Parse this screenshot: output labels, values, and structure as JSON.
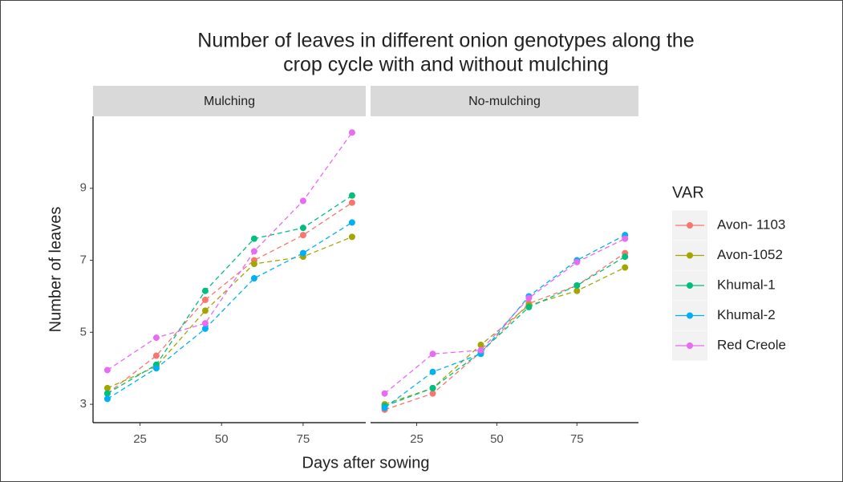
{
  "chart_data": {
    "type": "line",
    "title": [
      "Number of leaves in different onion genotypes along the",
      "crop cycle with and without mulching"
    ],
    "xlabel": "Days after sowing",
    "ylabel": "Number of leaves",
    "legend_title": "VAR",
    "panels": [
      "Mulching",
      "No-mulching"
    ],
    "x": [
      15,
      30,
      45,
      60,
      75,
      90
    ],
    "xlim": [
      10.6,
      94.2
    ],
    "xticks": [
      25,
      50,
      75
    ],
    "ylim": [
      2.49,
      11.0
    ],
    "yticks": [
      3,
      5,
      7,
      9
    ],
    "grid": false,
    "line_style": "dashed",
    "series": [
      {
        "name": "Avon- 1103",
        "color": "#f8766d",
        "values": [
          [
            3.3,
            4.35,
            5.9,
            7.0,
            7.7,
            8.6
          ],
          [
            2.85,
            3.3,
            4.45,
            5.8,
            6.3,
            7.2
          ]
        ]
      },
      {
        "name": "Avon-1052",
        "color": "#a3a500",
        "values": [
          [
            3.45,
            4.05,
            5.6,
            6.9,
            7.1,
            7.65
          ],
          [
            3.0,
            3.45,
            4.65,
            5.75,
            6.15,
            6.8
          ]
        ]
      },
      {
        "name": "Khumal-1",
        "color": "#00bf7d",
        "values": [
          [
            3.3,
            4.1,
            6.15,
            7.6,
            7.9,
            8.8
          ],
          [
            2.95,
            3.45,
            4.45,
            5.7,
            6.3,
            7.1
          ]
        ]
      },
      {
        "name": "Khumal-2",
        "color": "#00b0f6",
        "values": [
          [
            3.15,
            4.0,
            5.1,
            6.5,
            7.2,
            8.05
          ],
          [
            2.9,
            3.9,
            4.4,
            6.0,
            7.0,
            7.7
          ]
        ]
      },
      {
        "name": "Red Creole",
        "color": "#e76bf3",
        "values": [
          [
            3.95,
            4.85,
            5.25,
            7.25,
            8.65,
            10.55
          ],
          [
            3.3,
            4.4,
            4.5,
            5.95,
            6.95,
            7.6
          ]
        ]
      }
    ]
  }
}
